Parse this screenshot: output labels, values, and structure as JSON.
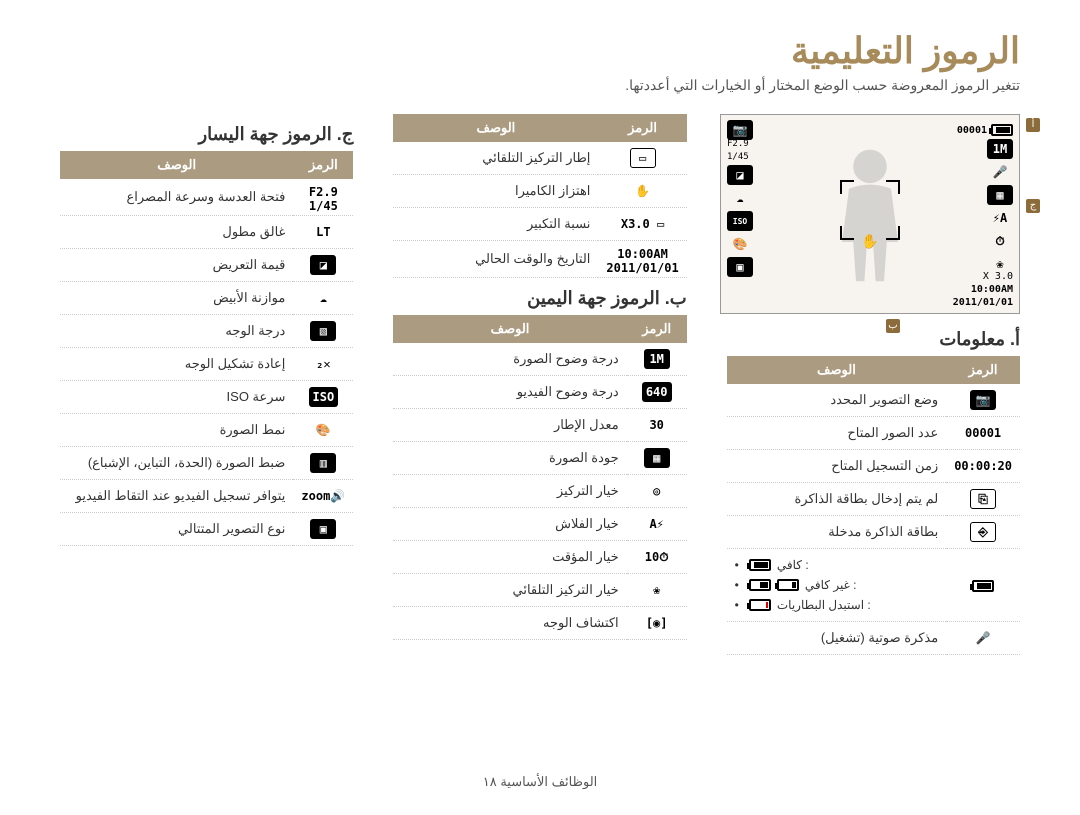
{
  "title": "الرموز التعليمية",
  "subtitle": "تتغير الرموز المعروضة حسب الوضع المختار أو الخيارات التي أعددتها.",
  "footer": "الوظائف الأساسية ١٨",
  "headers": {
    "icon": "الرمز",
    "desc": "الوصف"
  },
  "markers": {
    "a": "أ",
    "b": "ب",
    "c": "ج"
  },
  "screen": {
    "top_counter": "00001",
    "aperture": "F2.9",
    "shutter": "1/45",
    "zoom": "X 3.0",
    "time": "10:00AM",
    "date": "2011/01/01"
  },
  "sectionA": {
    "title": "أ. معلومات",
    "rows": [
      {
        "icon_text": "📷",
        "icon_class": "icon-dark",
        "desc": "وضع التصوير المحدد"
      },
      {
        "icon_text": "00001",
        "icon_class": "",
        "desc": "عدد الصور المتاح"
      },
      {
        "icon_text": "00:00:20",
        "icon_class": "",
        "desc": "زمن التسجيل المتاح"
      },
      {
        "icon_text": "⎘",
        "icon_class": "icon-outline",
        "desc": "لم يتم إدخال بطاقة الذاكرة"
      },
      {
        "icon_text": "⎆",
        "icon_class": "icon-outline",
        "desc": "بطاقة الذاكرة مدخلة"
      }
    ],
    "battery_rows": {
      "full": ": كافي",
      "low": ": غير كافي",
      "empty": ": استبدل البطاريات"
    },
    "voice_memo": {
      "icon_text": "🎤",
      "desc": "مذكرة صوتية (تشغيل)"
    }
  },
  "sectionB": {
    "title": "ب. الرموز جهة اليمين",
    "rows": [
      {
        "icon_text": "1M",
        "icon_class": "icon-dark",
        "desc": "درجة وضوح الصورة"
      },
      {
        "icon_text": "640",
        "icon_class": "icon-dark",
        "desc": "درجة وضوح الفيديو"
      },
      {
        "icon_text": "30",
        "icon_class": "",
        "desc": "معدل الإطار"
      },
      {
        "icon_text": "▦",
        "icon_class": "icon-dark",
        "desc": "جودة الصورة"
      },
      {
        "icon_text": "◎",
        "icon_class": "",
        "desc": "خيار التركيز"
      },
      {
        "icon_text": "⚡A",
        "icon_class": "",
        "desc": "خيار الفلاش"
      },
      {
        "icon_text": "⏱10",
        "icon_class": "",
        "desc": "خيار المؤقت"
      },
      {
        "icon_text": "❀",
        "icon_class": "",
        "desc": "خيار التركيز التلقائي"
      },
      {
        "icon_text": "[◉]",
        "icon_class": "",
        "desc": "اكتشاف الوجه"
      }
    ]
  },
  "sectionB_top": {
    "rows": [
      {
        "icon_text": "▭",
        "icon_class": "icon-outline",
        "desc": "إطار التركيز التلقائي"
      },
      {
        "icon_text": "✋",
        "icon_class": "",
        "desc": "اهتزاز الكاميرا"
      },
      {
        "icon_text": "▭ X3.0",
        "icon_class": "",
        "desc": "نسبة التكبير"
      },
      {
        "icon_text": "10:00AM\n2011/01/01",
        "icon_class": "",
        "desc": "التاريخ والوقت الحالي"
      }
    ]
  },
  "sectionC": {
    "title": "ج. الرموز جهة اليسار",
    "rows": [
      {
        "icon_text": "F2.9\n1/45",
        "icon_class": "",
        "desc": "فتحة العدسة وسرعة المصراع"
      },
      {
        "icon_text": "LT",
        "icon_class": "",
        "desc": "غالق مطول"
      },
      {
        "icon_text": "◪",
        "icon_class": "icon-dark",
        "desc": "قيمة التعريض"
      },
      {
        "icon_text": "☁",
        "icon_class": "",
        "desc": "موازنة الأبيض"
      },
      {
        "icon_text": "▧",
        "icon_class": "icon-dark",
        "desc": "درجة الوجه"
      },
      {
        "icon_text": "✕₂",
        "icon_class": "",
        "desc": "إعادة تشكيل الوجه"
      },
      {
        "icon_text": "ISO",
        "icon_class": "icon-dark",
        "desc": "سرعة ISO"
      },
      {
        "icon_text": "🎨",
        "icon_class": "",
        "desc": "نمط الصورة"
      },
      {
        "icon_text": "▥",
        "icon_class": "icon-dark",
        "desc": "ضبط الصورة (الحدة، التباين، الإشباع)"
      },
      {
        "icon_text": "🔊zoom",
        "icon_class": "",
        "desc": "يتوافر تسجيل الفيديو عند التقاط الفيديو"
      },
      {
        "icon_text": "▣",
        "icon_class": "icon-dark",
        "desc": "نوع التصوير المتتالي"
      }
    ]
  }
}
